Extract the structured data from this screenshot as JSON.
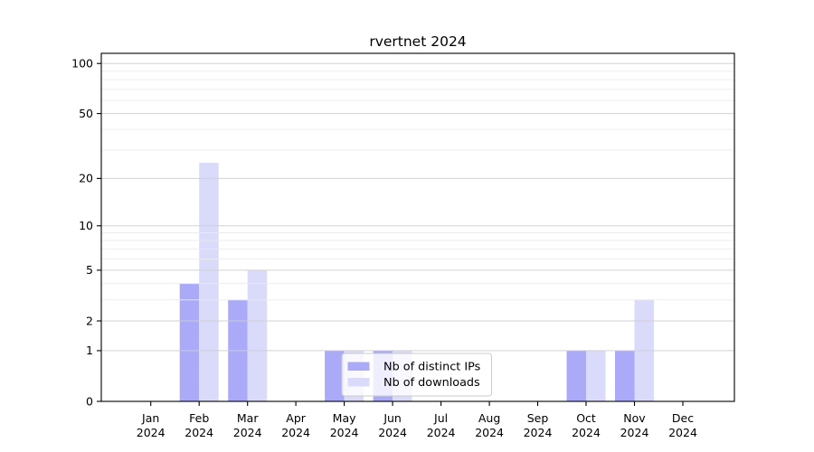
{
  "chart_data": {
    "type": "bar",
    "title": "rvertnet 2024",
    "categories": [
      "Jan",
      "Feb",
      "Mar",
      "Apr",
      "May",
      "Jun",
      "Jul",
      "Aug",
      "Sep",
      "Oct",
      "Nov",
      "Dec"
    ],
    "year_label": "2024",
    "series": [
      {
        "name": "Nb of distinct IPs",
        "color": "#aaaaf9",
        "values": [
          0,
          4,
          3,
          0,
          1,
          1,
          0,
          0,
          0,
          1,
          1,
          0
        ]
      },
      {
        "name": "Nb of downloads",
        "color": "#dadafa",
        "values": [
          0,
          25,
          5,
          0,
          1,
          1,
          0,
          0,
          0,
          1,
          3,
          0
        ]
      }
    ],
    "xlabel": "",
    "ylabel": "",
    "yscale": "log1p",
    "ylim": [
      0,
      115
    ],
    "yticks": [
      0,
      1,
      2,
      5,
      10,
      20,
      50,
      100
    ],
    "minor_yticks": [
      3,
      4,
      6,
      7,
      8,
      9,
      30,
      40,
      60,
      70,
      80,
      90
    ],
    "grid": true,
    "legend_position": "inside-bottom-center",
    "colors": {
      "axis": "#000000",
      "grid_major": "#cfcfcf",
      "grid_minor": "#ececec",
      "legend_border": "#cccccc",
      "legend_bg": "#ffffff",
      "background": "#ffffff"
    }
  }
}
